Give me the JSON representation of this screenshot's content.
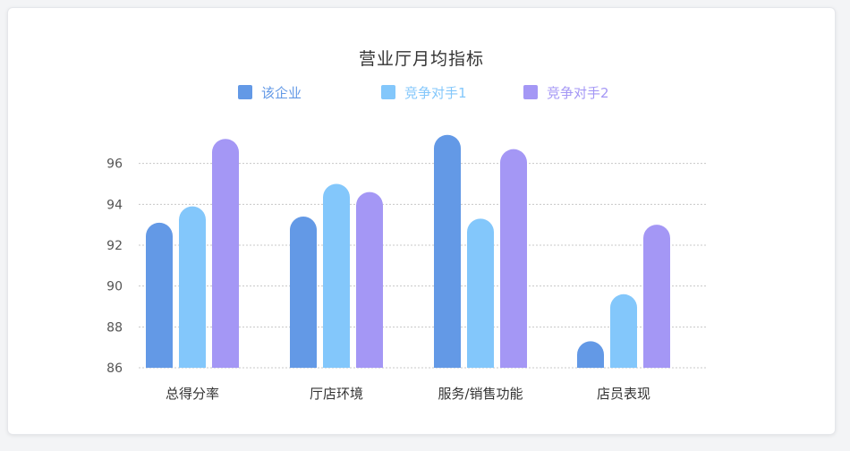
{
  "chart_data": {
    "type": "bar",
    "title": "营业厅月均指标",
    "categories": [
      "总得分率",
      "厅店环境",
      "服务/销售功能",
      "店员表现"
    ],
    "series": [
      {
        "name": "该企业",
        "color": "#6399e6",
        "values": [
          93.1,
          93.4,
          97.4,
          87.3
        ]
      },
      {
        "name": "竞争对手1",
        "color": "#83c7fb",
        "values": [
          93.9,
          95.0,
          93.3,
          89.6
        ]
      },
      {
        "name": "竞争对手2",
        "color": "#a497f5",
        "values": [
          97.2,
          94.6,
          96.7,
          93.0
        ]
      }
    ],
    "yticks": [
      86,
      88,
      90,
      92,
      94,
      96
    ],
    "ylim": [
      86,
      98
    ],
    "grid": true,
    "legend_position": "top"
  }
}
